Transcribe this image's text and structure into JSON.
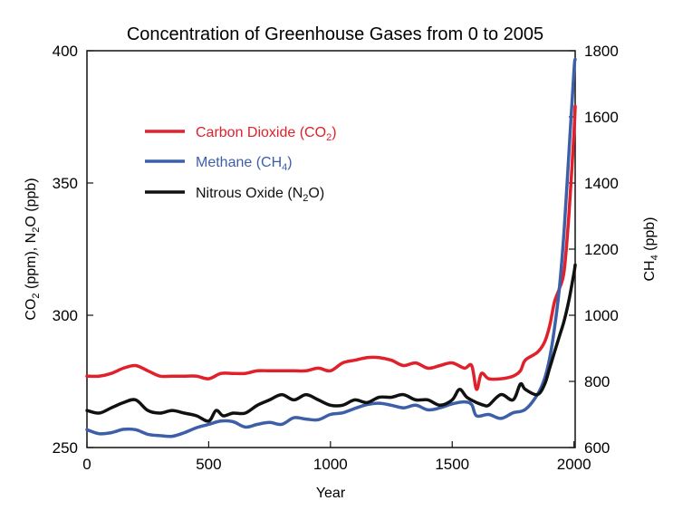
{
  "chart_data": {
    "type": "line",
    "title": "Concentration of Greenhouse Gases from 0 to 2005",
    "xlabel": "Year",
    "ylabel_left": {
      "main": "CO",
      "sub1": "2",
      "mid": " (ppm), N",
      "sub2": "2",
      "end": "O (ppb)"
    },
    "ylabel_right": {
      "main": "CH",
      "sub": "4",
      "end": " (ppb)"
    },
    "xlim": [
      0,
      2005
    ],
    "ylim_left": [
      250,
      400
    ],
    "ylim_right": [
      600,
      1800
    ],
    "x_ticks": [
      0,
      500,
      1000,
      1500,
      2000
    ],
    "y_left_ticks": [
      250,
      300,
      350,
      400
    ],
    "y_right_ticks": [
      600,
      800,
      1000,
      1200,
      1400,
      1600,
      1800
    ],
    "grid": false,
    "legend_position": "upper-left",
    "series": [
      {
        "name": "Carbon Dioxide (CO2)",
        "legend": {
          "main": "Carbon Dioxide (CO",
          "sub": "2",
          "end": ")"
        },
        "axis": "left",
        "color": "#e0202a",
        "x": [
          0,
          50,
          100,
          150,
          200,
          250,
          300,
          350,
          400,
          450,
          500,
          550,
          600,
          650,
          700,
          750,
          800,
          850,
          900,
          950,
          1000,
          1050,
          1100,
          1150,
          1200,
          1250,
          1300,
          1350,
          1400,
          1450,
          1500,
          1550,
          1580,
          1600,
          1620,
          1650,
          1700,
          1750,
          1780,
          1800,
          1850,
          1880,
          1900,
          1920,
          1940,
          1960,
          1980,
          2000,
          2005
        ],
        "y": [
          277,
          277,
          278,
          280,
          281,
          279,
          277,
          277,
          277,
          277,
          276,
          278,
          278,
          278,
          279,
          279,
          279,
          279,
          279,
          280,
          279,
          282,
          283,
          284,
          284,
          283,
          281,
          282,
          280,
          281,
          282,
          280,
          281,
          272,
          278,
          276,
          276,
          277,
          279,
          283,
          286,
          290,
          296,
          305,
          310,
          317,
          339,
          369,
          379
        ]
      },
      {
        "name": "Methane (CH4)",
        "legend": {
          "main": "Methane (CH",
          "sub": "4",
          "end": ")"
        },
        "axis": "right",
        "color": "#3c5fa8",
        "x": [
          0,
          50,
          100,
          150,
          200,
          250,
          300,
          350,
          400,
          450,
          500,
          550,
          600,
          650,
          700,
          750,
          800,
          850,
          900,
          950,
          1000,
          1050,
          1100,
          1150,
          1200,
          1250,
          1300,
          1350,
          1400,
          1450,
          1500,
          1550,
          1580,
          1600,
          1650,
          1700,
          1750,
          1800,
          1850,
          1880,
          1900,
          1920,
          1940,
          1960,
          1980,
          2000,
          2005
        ],
        "y": [
          654,
          642,
          645,
          655,
          654,
          640,
          636,
          634,
          645,
          660,
          670,
          680,
          678,
          662,
          670,
          676,
          670,
          690,
          686,
          684,
          700,
          705,
          718,
          730,
          734,
          728,
          720,
          728,
          714,
          720,
          732,
          738,
          730,
          696,
          700,
          688,
          705,
          715,
          760,
          810,
          870,
          960,
          1080,
          1260,
          1500,
          1740,
          1774
        ]
      },
      {
        "name": "Nitrous Oxide (N2O)",
        "legend": {
          "main": "Nitrous Oxide (N",
          "sub": "2",
          "end": "O)"
        },
        "axis": "left",
        "color": "#111111",
        "x": [
          0,
          50,
          100,
          150,
          200,
          250,
          300,
          350,
          400,
          450,
          500,
          530,
          560,
          600,
          650,
          700,
          750,
          800,
          850,
          900,
          950,
          1000,
          1050,
          1100,
          1150,
          1200,
          1250,
          1300,
          1350,
          1400,
          1450,
          1500,
          1530,
          1560,
          1600,
          1630,
          1650,
          1700,
          1750,
          1780,
          1800,
          1850,
          1880,
          1900,
          1920,
          1940,
          1960,
          1980,
          2000,
          2005
        ],
        "y": [
          264,
          263,
          265,
          267,
          268,
          264,
          263,
          264,
          263,
          262,
          260,
          264,
          262,
          263,
          263,
          266,
          268,
          270,
          268,
          270,
          268,
          266,
          266,
          268,
          267,
          269,
          269,
          270,
          268,
          268,
          266,
          268,
          272,
          269,
          267,
          266,
          266,
          270,
          268,
          274,
          272,
          270,
          274,
          280,
          286,
          292,
          298,
          306,
          316,
          319
        ]
      }
    ]
  }
}
